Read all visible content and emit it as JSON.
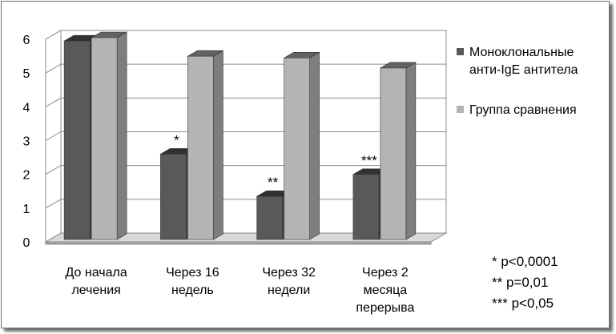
{
  "chart_data": {
    "type": "bar",
    "style": "3d-clustered-column",
    "categories": [
      [
        "До начала",
        "лечения"
      ],
      [
        "Через 16",
        "недель"
      ],
      [
        "Через 32",
        "недели"
      ],
      [
        "Через 2",
        "месяца",
        "перерыва"
      ]
    ],
    "series": [
      {
        "name": [
          "Моноклональные",
          "анти-IgE антитела"
        ],
        "color": "#595959",
        "values": [
          5.9,
          2.55,
          1.3,
          1.95
        ],
        "annotations": [
          "",
          "*",
          "**",
          "***"
        ]
      },
      {
        "name": [
          "Группа сравнения"
        ],
        "color": "#b4b4b4",
        "values": [
          6.0,
          5.45,
          5.4,
          5.1
        ]
      }
    ],
    "ylim": [
      0,
      6
    ],
    "yticks": [
      "0",
      "1",
      "2",
      "3",
      "4",
      "5",
      "6"
    ],
    "grid": true,
    "legend": "right",
    "notes": [
      "* p<0,0001",
      "** p=0,01",
      "*** p<0,05"
    ]
  }
}
